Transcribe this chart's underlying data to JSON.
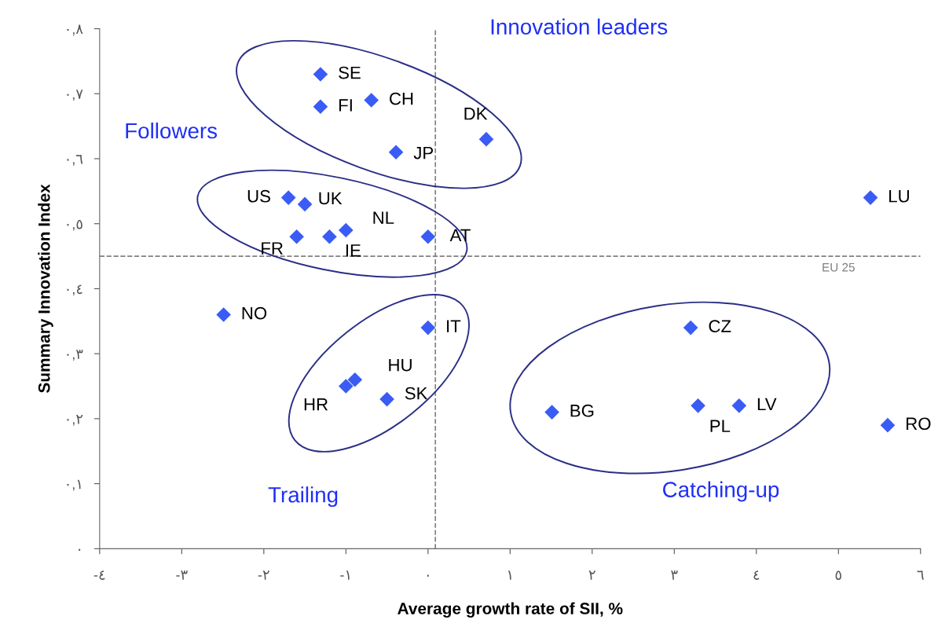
{
  "chart_data": {
    "type": "scatter",
    "xlabel": "Average growth rate of SII, %",
    "ylabel": "Summary Innovation Index",
    "xlim": [
      -4,
      6
    ],
    "ylim": [
      0,
      0.8
    ],
    "xticks": [
      {
        "value": -4,
        "label": "-٤"
      },
      {
        "value": -3,
        "label": "-٣"
      },
      {
        "value": -2,
        "label": "-٢"
      },
      {
        "value": -1,
        "label": "-١"
      },
      {
        "value": 0,
        "label": "٠"
      },
      {
        "value": 1,
        "label": "١"
      },
      {
        "value": 2,
        "label": "٢"
      },
      {
        "value": 3,
        "label": "٣"
      },
      {
        "value": 4,
        "label": "٤"
      },
      {
        "value": 5,
        "label": "٥"
      },
      {
        "value": 6,
        "label": "٦"
      }
    ],
    "yticks": [
      {
        "value": 0,
        "label": "٠"
      },
      {
        "value": 0.1,
        "label": "٠,١"
      },
      {
        "value": 0.2,
        "label": "٠,٢"
      },
      {
        "value": 0.3,
        "label": "٠,٣"
      },
      {
        "value": 0.4,
        "label": "٠,٤"
      },
      {
        "value": 0.5,
        "label": "٠,٥"
      },
      {
        "value": 0.6,
        "label": "٠,٦"
      },
      {
        "value": 0.7,
        "label": "٠,٧"
      },
      {
        "value": 0.8,
        "label": "٠,٨"
      }
    ],
    "marker": "diamond",
    "grid": false,
    "series": [
      {
        "color": "#3a5cf5",
        "x": [
          -1.31,
          -1.31,
          -0.69,
          0.71,
          -0.39
        ],
        "values": [
          0.73,
          0.68,
          0.69,
          0.63,
          0.61
        ],
        "value_labels": [
          "SE",
          "FI",
          "CH",
          "DK",
          "JP"
        ]
      },
      {
        "color": "#3a5cf5",
        "x": [
          -1.7,
          -1.5,
          -1.6,
          -1.2,
          -1.0,
          0.0
        ],
        "values": [
          0.54,
          0.53,
          0.48,
          0.48,
          0.49,
          0.48
        ],
        "value_labels": [
          "US",
          "UK",
          "FR",
          "IE",
          "NL",
          "AT"
        ]
      },
      {
        "color": "#3a5cf5",
        "x": [
          0.0,
          -0.89,
          -1.0,
          -0.5
        ],
        "values": [
          0.34,
          0.26,
          0.25,
          0.23
        ],
        "value_labels": [
          "IT",
          "HU",
          "HR",
          "SK"
        ]
      },
      {
        "color": "#3a5cf5",
        "x": [
          1.51,
          3.2,
          3.29,
          3.79
        ],
        "values": [
          0.21,
          0.34,
          0.22,
          0.22
        ],
        "value_labels": [
          "BG",
          "CZ",
          "PL",
          "LV"
        ]
      },
      {
        "color": "#3a5cf5",
        "x": [
          5.39
        ],
        "values": [
          0.54
        ],
        "value_labels": [
          "LU"
        ]
      },
      {
        "color": "#3a5cf5",
        "x": [
          -2.49
        ],
        "values": [
          0.36
        ],
        "value_labels": [
          "NO"
        ]
      },
      {
        "color": "#3a5cf5",
        "x": [
          5.6
        ],
        "values": [
          0.19
        ],
        "value_labels": [
          "RO"
        ]
      }
    ],
    "ref_lines": [
      {
        "axis": "y",
        "value": 0.45,
        "label": "EU 25",
        "color": "#808080",
        "line_style": "dashed"
      },
      {
        "axis": "x",
        "value": 0.09,
        "color": "#808080",
        "line_style": "dashed"
      }
    ],
    "annotations": [
      "Innovation leaders",
      "Followers",
      "Trailing",
      "Catching-up"
    ]
  }
}
